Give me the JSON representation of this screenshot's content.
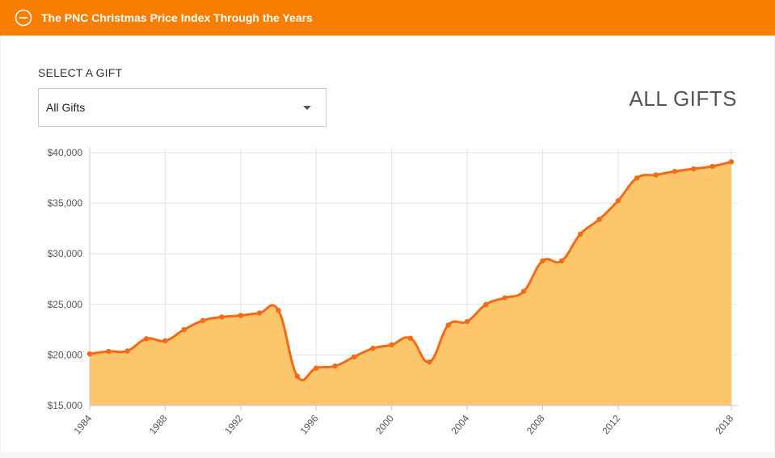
{
  "header": {
    "title": "The PNC Christmas Price Index Through the Years",
    "icon": "minus-circle-icon",
    "background_color": "#f87e00"
  },
  "controls": {
    "select_label": "SELECT A GIFT",
    "selected_value": "All Gifts"
  },
  "chart_data": {
    "type": "area",
    "title": "ALL GIFTS",
    "xlabel": "",
    "ylabel": "",
    "xlim": [
      1984,
      2018
    ],
    "ylim": [
      15000,
      40000
    ],
    "x_ticks": [
      "1984",
      "1988",
      "1992",
      "1996",
      "2000",
      "2004",
      "2008",
      "2012",
      "2018"
    ],
    "y_ticks": [
      "$15,000",
      "$20,000",
      "$25,000",
      "$30,000",
      "$35,000",
      "$40,000"
    ],
    "grid": true,
    "line_color": "#f26b16",
    "fill_color": "#fec66a",
    "series": [
      {
        "x": [
          1984,
          1985,
          1986,
          1987,
          1988,
          1989,
          1990,
          1991,
          1992,
          1993,
          1994,
          1995,
          1996,
          1997,
          1998,
          1999,
          2000,
          2001,
          2002,
          2003,
          2004,
          2005,
          2006,
          2007,
          2008,
          2009,
          2010,
          2011,
          2012,
          2013,
          2014,
          2015,
          2016,
          2017,
          2018
        ],
        "values": [
          20100,
          20350,
          20400,
          21600,
          21400,
          22500,
          23400,
          23750,
          23900,
          24150,
          24400,
          17900,
          18700,
          18900,
          19800,
          20650,
          21000,
          21650,
          19300,
          22950,
          23300,
          25000,
          25650,
          26300,
          29300,
          29300,
          31950,
          33400,
          35250,
          37500,
          37800,
          38150,
          38400,
          38650,
          39100
        ]
      }
    ]
  }
}
